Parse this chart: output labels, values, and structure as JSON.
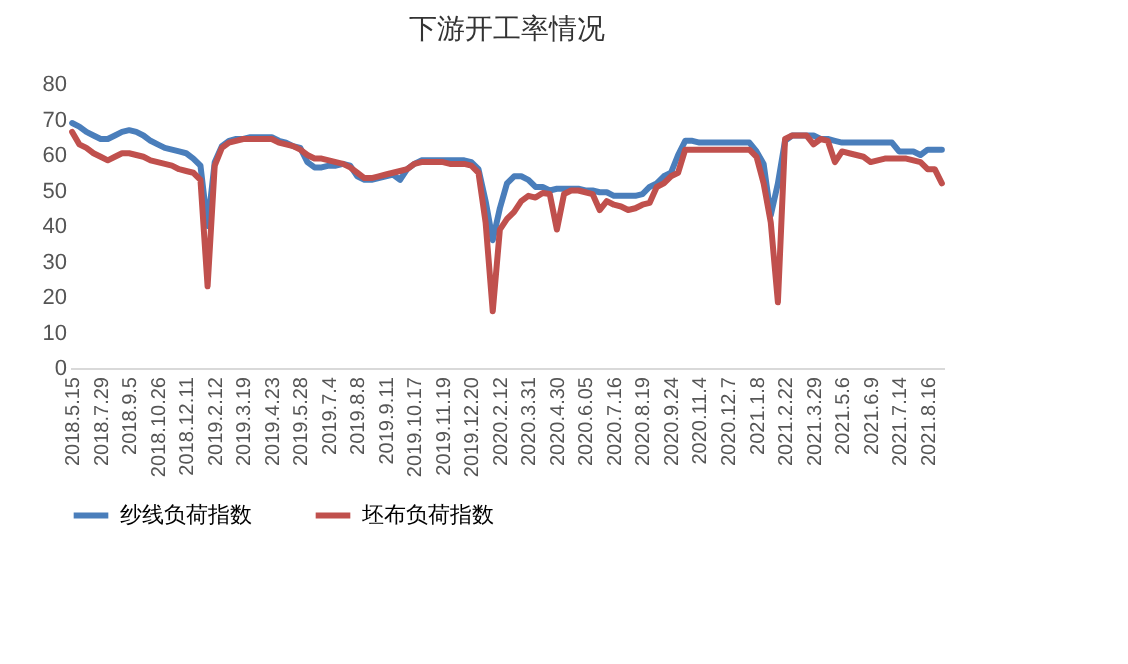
{
  "chart_data": {
    "type": "line",
    "title": "下游开工率情况",
    "categories": [
      "2018.5.15",
      null,
      null,
      null,
      "2018.7.29",
      null,
      null,
      null,
      "2018.9.5",
      null,
      null,
      null,
      "2018.10.26",
      null,
      null,
      null,
      "2018.12.11",
      null,
      null,
      null,
      "2019.2.12",
      null,
      null,
      null,
      "2019.3.19",
      null,
      null,
      null,
      "2019.4.23",
      null,
      null,
      null,
      "2019.5.28",
      null,
      null,
      null,
      "2019.7.4",
      null,
      null,
      null,
      "2019.8.8",
      null,
      null,
      null,
      "2019.9.11",
      null,
      null,
      null,
      "2019.10.17",
      null,
      null,
      null,
      "2019.11.19",
      null,
      null,
      null,
      "2019.12.20",
      null,
      null,
      null,
      "2020.2.12",
      null,
      null,
      null,
      "2020.3.31",
      null,
      null,
      null,
      "2020.4.30",
      null,
      null,
      null,
      "2020.6.05",
      null,
      null,
      null,
      "2020.7.16",
      null,
      null,
      null,
      "2020.8.19",
      null,
      null,
      null,
      "2020.9.24",
      null,
      null,
      null,
      "2020.11.4",
      null,
      null,
      null,
      "2020.12.7",
      null,
      null,
      null,
      "2021.1.8",
      null,
      null,
      null,
      "2021.2.22",
      null,
      null,
      null,
      "2021.3.29",
      null,
      null,
      null,
      "2021.5.6",
      null,
      null,
      null,
      "2021.6.9",
      null,
      null,
      null,
      "2021.7.14",
      null,
      null,
      null,
      "2021.8.16",
      null,
      null
    ],
    "series": [
      {
        "name": "纱线负荷指数",
        "color": "#4a7ebb",
        "values": [
          69,
          68,
          66.5,
          65.5,
          64.5,
          64.5,
          65.5,
          66.5,
          67,
          66.5,
          65.5,
          64,
          63,
          62,
          61.5,
          61,
          60.5,
          59,
          57,
          40,
          58,
          62.5,
          64,
          64.5,
          64.5,
          65,
          65,
          65,
          65,
          64,
          63.5,
          62.5,
          62,
          58,
          56.5,
          56.5,
          57,
          57,
          57.5,
          57,
          54,
          53,
          53,
          53.5,
          54,
          54.5,
          53,
          56,
          57.5,
          58.5,
          58.5,
          58.5,
          58.5,
          58.5,
          58.5,
          58.5,
          58,
          56,
          47,
          36,
          45,
          52,
          54,
          54,
          53,
          51,
          51,
          50,
          50.5,
          50.5,
          50.5,
          50.5,
          50,
          50,
          49.5,
          49.5,
          48.5,
          48.5,
          48.5,
          48.5,
          49,
          51,
          52,
          54,
          55,
          60,
          64,
          64,
          63.5,
          63.5,
          63.5,
          63.5,
          63.5,
          63.5,
          63.5,
          63.5,
          61,
          57.5,
          43,
          52,
          64,
          65.5,
          65.5,
          65.5,
          65.5,
          64.5,
          64.5,
          64,
          63.5,
          63.5,
          63.5,
          63.5,
          63.5,
          63.5,
          63.5,
          63.5,
          61,
          61,
          61,
          60,
          61.5,
          61.5,
          61.5
        ]
      },
      {
        "name": "坯布负荷指数",
        "color": "#c0504d",
        "values": [
          66.5,
          63,
          62,
          60.5,
          59.5,
          58.5,
          59.5,
          60.5,
          60.5,
          60,
          59.5,
          58.5,
          58,
          57.5,
          57,
          56,
          55.5,
          55,
          53,
          23,
          57,
          62,
          63.5,
          64,
          64.5,
          64.5,
          64.5,
          64.5,
          64.5,
          63.5,
          63,
          62.5,
          61.5,
          60,
          59,
          59,
          58.5,
          58,
          57.5,
          56.5,
          55,
          53.5,
          53.5,
          54,
          54.5,
          55,
          55.5,
          56,
          57.5,
          58,
          58,
          58,
          58,
          57.5,
          57.5,
          57.5,
          57,
          55,
          41,
          16,
          39,
          42,
          44,
          47,
          48.5,
          48,
          49.3,
          49,
          39,
          49,
          50,
          50,
          49.5,
          49,
          44.5,
          47,
          46,
          45.5,
          44.5,
          45,
          46,
          46.5,
          51,
          52,
          54,
          55,
          61.5,
          61.5,
          61.5,
          61.5,
          61.5,
          61.5,
          61.5,
          61.5,
          61.5,
          61.5,
          59.5,
          52,
          41,
          18.5,
          64.5,
          65.5,
          65.5,
          65.5,
          63,
          64.5,
          64,
          58,
          61,
          60.5,
          60,
          59.5,
          58,
          58.5,
          59,
          59,
          59,
          59,
          58.5,
          58,
          56,
          56,
          52
        ]
      }
    ],
    "ylim": [
      0,
      80
    ],
    "yticks": [
      0,
      10,
      20,
      30,
      40,
      50,
      60,
      70,
      80
    ],
    "grid": false,
    "legend": "bottom",
    "line_style": "solid",
    "marker": "none"
  }
}
